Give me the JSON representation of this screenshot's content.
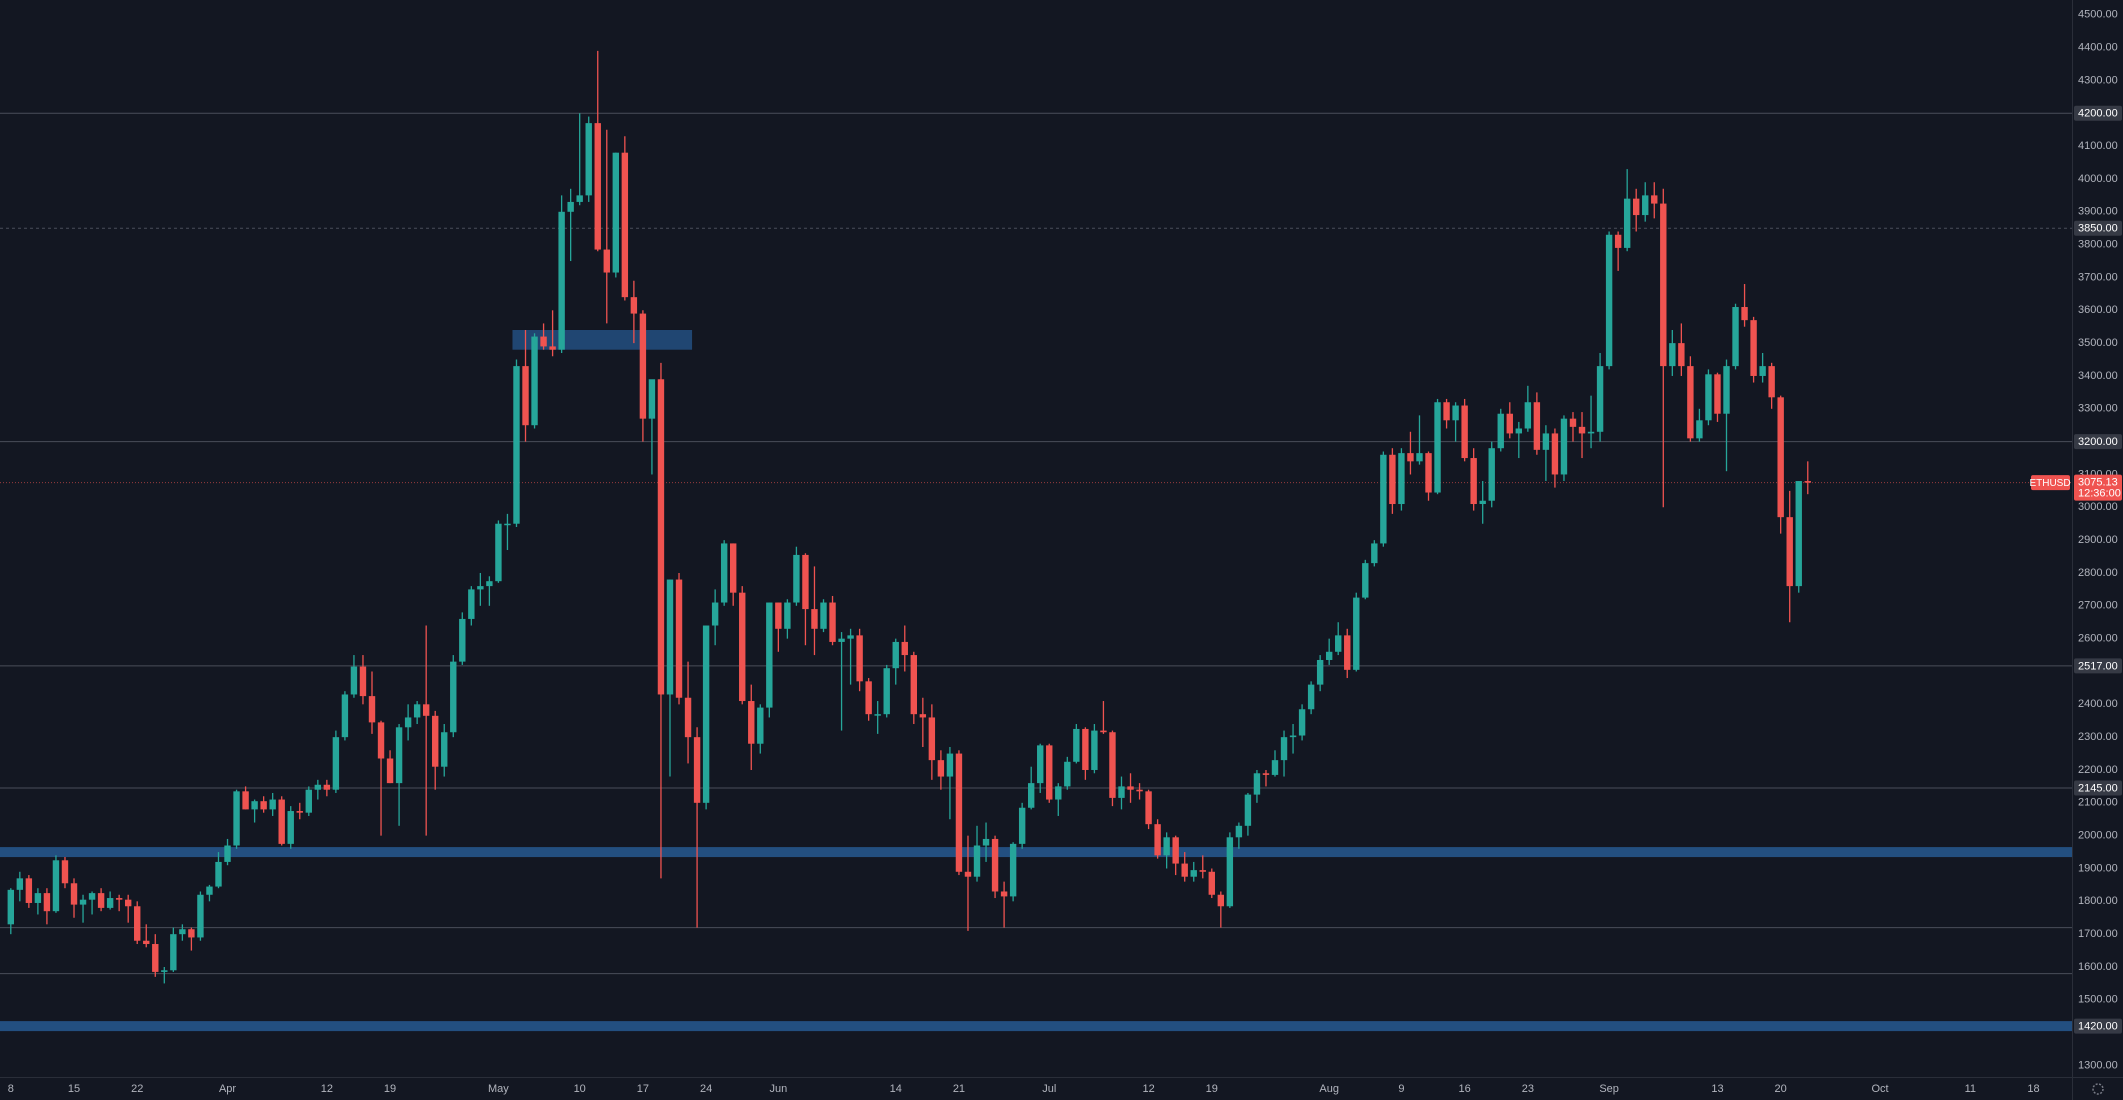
{
  "chart_data": {
    "type": "candlestick",
    "symbol": "ETHUSD",
    "up_color": "#26a69a",
    "down_color": "#ef5350",
    "band_color": "#234f80",
    "level_color": "#4a4e5a",
    "categories": [
      "8",
      null,
      null,
      null,
      null,
      null,
      null,
      "15",
      null,
      null,
      null,
      null,
      null,
      null,
      "22",
      null,
      null,
      null,
      null,
      null,
      null,
      null,
      null,
      null,
      "Apr",
      null,
      null,
      null,
      null,
      null,
      null,
      null,
      null,
      null,
      null,
      "12",
      null,
      null,
      null,
      null,
      null,
      null,
      "19",
      null,
      null,
      null,
      null,
      null,
      null,
      null,
      null,
      null,
      null,
      null,
      "May",
      null,
      null,
      null,
      null,
      null,
      null,
      null,
      null,
      "10",
      null,
      null,
      null,
      null,
      null,
      null,
      "17",
      null,
      null,
      null,
      null,
      null,
      null,
      "24",
      null,
      null,
      null,
      null,
      null,
      null,
      null,
      "Jun",
      null,
      null,
      null,
      null,
      null,
      null,
      null,
      null,
      null,
      null,
      null,
      null,
      "14",
      null,
      null,
      null,
      null,
      null,
      null,
      "21",
      null,
      null,
      null,
      null,
      null,
      null,
      null,
      null,
      null,
      "Jul",
      null,
      null,
      null,
      null,
      null,
      null,
      null,
      null,
      null,
      null,
      "12",
      null,
      null,
      null,
      null,
      null,
      null,
      "19",
      null,
      null,
      null,
      null,
      null,
      null,
      null,
      null,
      null,
      null,
      null,
      null,
      "Aug",
      null,
      null,
      null,
      null,
      null,
      null,
      null,
      "9",
      null,
      null,
      null,
      null,
      null,
      null,
      "16",
      null,
      null,
      null,
      null,
      null,
      null,
      "23",
      null,
      null,
      null,
      null,
      null,
      null,
      null,
      null,
      "Sep",
      null,
      null,
      null,
      null,
      null,
      null,
      null,
      null,
      null,
      null,
      null,
      "13",
      null,
      null,
      null,
      null,
      null,
      null,
      "20",
      null,
      null,
      null,
      null,
      null,
      null,
      null,
      null,
      null,
      null,
      "Oct",
      null,
      null,
      null,
      null,
      null,
      null,
      null,
      null,
      null,
      "11",
      null,
      null,
      null,
      null,
      null,
      null,
      "18",
      null,
      null
    ],
    "open": [
      1730,
      1835,
      1870,
      1795,
      1825,
      1770,
      1925,
      1855,
      1790,
      1805,
      1825,
      1780,
      1810,
      1805,
      1785,
      1680,
      1670,
      1585,
      1590,
      1700,
      1715,
      1690,
      1820,
      1845,
      1920,
      1970,
      2135,
      2080,
      2105,
      2080,
      2110,
      1975,
      2075,
      2070,
      2140,
      2155,
      2140,
      2300,
      2430,
      2515,
      2425,
      2345,
      2235,
      2160,
      2330,
      2360,
      2400,
      2365,
      2210,
      2315,
      2530,
      2660,
      2750,
      2760,
      2775,
      2950,
      2950,
      3430,
      3250,
      3520,
      3490,
      3480,
      3900,
      3930,
      3950,
      4170,
      3785,
      3715,
      4080,
      3640,
      3590,
      3270,
      3390,
      2430,
      2780,
      2420,
      2300,
      2100,
      2640,
      2710,
      2890,
      2740,
      2410,
      2280,
      2390,
      2710,
      2630,
      2710,
      2855,
      2690,
      2630,
      2710,
      2590,
      2600,
      2610,
      2470,
      2370,
      2370,
      2510,
      2590,
      2550,
      2370,
      2360,
      2230,
      2180,
      2250,
      1890,
      1875,
      1970,
      1990,
      1830,
      1815,
      1975,
      2085,
      2160,
      2275,
      2110,
      2150,
      2225,
      2325,
      2200,
      2320,
      2315,
      2115,
      2150,
      2140,
      2135,
      2035,
      1940,
      1995,
      1915,
      1875,
      1895,
      1890,
      1820,
      1785,
      1995,
      2030,
      2125,
      2190,
      2185,
      2230,
      2300,
      2305,
      2385,
      2460,
      2535,
      2560,
      2610,
      2505,
      2725,
      2830,
      2890,
      3160,
      3010,
      3165,
      3140,
      3165,
      3045,
      3320,
      3265,
      3310,
      3150,
      3010,
      3020,
      3180,
      3285,
      3225,
      3240,
      3320,
      3175,
      3225,
      3100,
      3270,
      3245,
      3225,
      3230,
      3430,
      3830,
      3790,
      3940,
      3890,
      3950,
      3925,
      3430,
      3500,
      3430,
      3210,
      3265,
      3405,
      3285,
      3430,
      3610,
      3570,
      3400,
      3430,
      3335,
      2970,
      2760,
      3080,
      null,
      null,
      null,
      null,
      null,
      null,
      null,
      null,
      null,
      null,
      null,
      null,
      null,
      null,
      null,
      null,
      null,
      null,
      null,
      null,
      null,
      null,
      null,
      null,
      null,
      null,
      null
    ],
    "high": [
      1840,
      1890,
      1880,
      1840,
      1840,
      1940,
      1935,
      1870,
      1820,
      1830,
      1840,
      1830,
      1820,
      1820,
      1800,
      1730,
      1700,
      1600,
      1720,
      1730,
      1720,
      1830,
      1850,
      1950,
      1990,
      2140,
      2150,
      2110,
      2120,
      2130,
      2120,
      2090,
      2100,
      2150,
      2170,
      2170,
      2320,
      2440,
      2550,
      2550,
      2500,
      2350,
      2260,
      2340,
      2400,
      2410,
      2640,
      2380,
      2340,
      2550,
      2680,
      2760,
      2800,
      2790,
      2960,
      2980,
      3450,
      3540,
      3530,
      3560,
      3600,
      3950,
      3970,
      4200,
      4190,
      4390,
      4150,
      4080,
      4130,
      3690,
      3600,
      3380,
      3440,
      2780,
      2800,
      2530,
      2330,
      2640,
      2750,
      2900,
      2890,
      2760,
      2460,
      2400,
      2710,
      2710,
      2720,
      2880,
      2860,
      2820,
      2720,
      2730,
      2620,
      2630,
      2630,
      2480,
      2410,
      2520,
      2600,
      2640,
      2560,
      2420,
      2400,
      2260,
      2270,
      2260,
      2000,
      2030,
      2040,
      2000,
      1860,
      1980,
      2100,
      2210,
      2280,
      2280,
      2160,
      2240,
      2340,
      2330,
      2340,
      2410,
      2320,
      2180,
      2190,
      2160,
      2140,
      2050,
      2010,
      2000,
      1950,
      1920,
      1940,
      1900,
      1830,
      2010,
      2040,
      2130,
      2200,
      2200,
      2260,
      2320,
      2340,
      2400,
      2470,
      2550,
      2600,
      2650,
      2630,
      2740,
      2840,
      2900,
      3170,
      3180,
      3180,
      3230,
      3280,
      3170,
      3330,
      3330,
      3320,
      3330,
      3180,
      3080,
      3200,
      3300,
      3320,
      3260,
      3370,
      3350,
      3250,
      3240,
      3280,
      3290,
      3290,
      3340,
      3470,
      3840,
      3840,
      4030,
      3970,
      3990,
      3990,
      3970,
      3540,
      3560,
      3460,
      3300,
      3420,
      3410,
      3450,
      3620,
      3680,
      3580,
      3470,
      3440,
      3340,
      3050,
      3080,
      3140,
      null,
      null,
      null,
      null,
      null,
      null,
      null,
      null,
      null,
      null,
      null,
      null,
      null,
      null,
      null,
      null,
      null,
      null,
      null,
      null,
      null,
      null,
      null,
      null,
      null,
      null,
      null
    ],
    "low": [
      1700,
      1800,
      1780,
      1760,
      1730,
      1765,
      1840,
      1750,
      1735,
      1760,
      1770,
      1775,
      1770,
      1735,
      1670,
      1660,
      1570,
      1550,
      1585,
      1680,
      1650,
      1680,
      1800,
      1840,
      1910,
      1960,
      2080,
      2040,
      2070,
      2060,
      1970,
      1960,
      2050,
      2060,
      2110,
      2120,
      2130,
      2290,
      2420,
      2400,
      2310,
      2000,
      2160,
      2030,
      2290,
      2340,
      2000,
      2140,
      2180,
      2300,
      2520,
      2640,
      2700,
      2700,
      2770,
      2870,
      2940,
      3200,
      3240,
      3480,
      3460,
      3470,
      3750,
      3920,
      3930,
      3780,
      3560,
      3700,
      3630,
      3500,
      3200,
      3100,
      1870,
      2180,
      2400,
      2220,
      1720,
      2080,
      2580,
      2700,
      2700,
      2400,
      2200,
      2250,
      2360,
      2560,
      2600,
      2700,
      2580,
      2550,
      2620,
      2580,
      2320,
      2460,
      2440,
      2350,
      2310,
      2360,
      2460,
      2500,
      2340,
      2270,
      2170,
      2140,
      2050,
      1880,
      1710,
      1860,
      1920,
      1810,
      1720,
      1800,
      1960,
      2080,
      2130,
      2100,
      2060,
      2140,
      2220,
      2170,
      2190,
      2310,
      2090,
      2080,
      2100,
      2110,
      2020,
      1930,
      1900,
      1880,
      1860,
      1860,
      1870,
      1810,
      1720,
      1780,
      1960,
      2000,
      2100,
      2150,
      2180,
      2180,
      2250,
      2290,
      2370,
      2440,
      2520,
      2550,
      2480,
      2500,
      2720,
      2820,
      2880,
      2980,
      2990,
      3100,
      3130,
      3020,
      3040,
      3240,
      3200,
      3140,
      2990,
      2950,
      3000,
      3170,
      3210,
      3150,
      3230,
      3160,
      3080,
      3060,
      3080,
      3200,
      3150,
      3180,
      3200,
      3420,
      3720,
      3780,
      3840,
      3870,
      3880,
      3000,
      3400,
      3400,
      3200,
      3200,
      3250,
      3260,
      3110,
      3420,
      3550,
      3380,
      3380,
      3300,
      2920,
      2650,
      2740,
      3040,
      null,
      null,
      null,
      null,
      null,
      null,
      null,
      null,
      null,
      null,
      null,
      null,
      null,
      null,
      null,
      null,
      null,
      null,
      null,
      null,
      null,
      null,
      null,
      null,
      null,
      null,
      null
    ],
    "close": [
      1835,
      1870,
      1795,
      1825,
      1770,
      1925,
      1855,
      1790,
      1805,
      1825,
      1780,
      1810,
      1805,
      1785,
      1680,
      1670,
      1585,
      1590,
      1700,
      1715,
      1690,
      1820,
      1845,
      1920,
      1970,
      2135,
      2080,
      2105,
      2080,
      2110,
      1975,
      2075,
      2070,
      2140,
      2155,
      2140,
      2300,
      2430,
      2515,
      2425,
      2345,
      2235,
      2160,
      2330,
      2360,
      2400,
      2365,
      2210,
      2315,
      2530,
      2660,
      2750,
      2760,
      2775,
      2950,
      2950,
      3430,
      3250,
      3520,
      3490,
      3480,
      3900,
      3930,
      3950,
      4170,
      3785,
      3715,
      4080,
      3640,
      3590,
      3270,
      3390,
      2430,
      2780,
      2420,
      2300,
      2100,
      2640,
      2710,
      2890,
      2740,
      2410,
      2280,
      2390,
      2710,
      2630,
      2710,
      2855,
      2690,
      2630,
      2710,
      2590,
      2600,
      2610,
      2470,
      2370,
      2370,
      2510,
      2590,
      2550,
      2370,
      2360,
      2230,
      2180,
      2250,
      1890,
      1875,
      1970,
      1990,
      1830,
      1815,
      1975,
      2085,
      2160,
      2275,
      2110,
      2150,
      2225,
      2325,
      2200,
      2320,
      2315,
      2115,
      2150,
      2140,
      2135,
      2035,
      1940,
      1995,
      1915,
      1875,
      1895,
      1890,
      1820,
      1785,
      1995,
      2030,
      2125,
      2190,
      2185,
      2230,
      2300,
      2305,
      2385,
      2460,
      2535,
      2560,
      2610,
      2505,
      2725,
      2830,
      2890,
      3160,
      3010,
      3165,
      3140,
      3165,
      3045,
      3320,
      3265,
      3310,
      3150,
      3010,
      3020,
      3180,
      3285,
      3225,
      3240,
      3320,
      3175,
      3225,
      3100,
      3270,
      3245,
      3225,
      3230,
      3430,
      3830,
      3790,
      3940,
      3890,
      3950,
      3925,
      3430,
      3500,
      3430,
      3210,
      3265,
      3405,
      3285,
      3430,
      3610,
      3570,
      3400,
      3430,
      3335,
      2970,
      2760,
      3080,
      3075.13,
      null,
      null,
      null,
      null,
      null,
      null,
      null,
      null,
      null,
      null,
      null,
      null,
      null,
      null,
      null,
      null,
      null,
      null,
      null,
      null,
      null,
      null,
      null,
      null,
      null,
      null,
      null
    ],
    "ylim": [
      1265,
      4545
    ],
    "yticks": [
      {
        "value": 1300,
        "label": "1300.00"
      },
      {
        "value": 1500,
        "label": "1500.00"
      },
      {
        "value": 1600,
        "label": "1600.00"
      },
      {
        "value": 1700,
        "label": "1700.00"
      },
      {
        "value": 1800,
        "label": "1800.00"
      },
      {
        "value": 1900,
        "label": "1900.00"
      },
      {
        "value": 2000,
        "label": "2000.00"
      },
      {
        "value": 2100,
        "label": "2100.00"
      },
      {
        "value": 2200,
        "label": "2200.00"
      },
      {
        "value": 2300,
        "label": "2300.00"
      },
      {
        "value": 2400,
        "label": "2400.00"
      },
      {
        "value": 2600,
        "label": "2600.00"
      },
      {
        "value": 2700,
        "label": "2700.00"
      },
      {
        "value": 2800,
        "label": "2800.00"
      },
      {
        "value": 2900,
        "label": "2900.00"
      },
      {
        "value": 3000,
        "label": "3000.00"
      },
      {
        "value": 3100,
        "label": "3100.00"
      },
      {
        "value": 3300,
        "label": "3300.00"
      },
      {
        "value": 3400,
        "label": "3400.00"
      },
      {
        "value": 3500,
        "label": "3500.00"
      },
      {
        "value": 3600,
        "label": "3600.00"
      },
      {
        "value": 3700,
        "label": "3700.00"
      },
      {
        "value": 3800,
        "label": "3800.00"
      },
      {
        "value": 3900,
        "label": "3900.00"
      },
      {
        "value": 4000,
        "label": "4000.00"
      },
      {
        "value": 4100,
        "label": "4100.00"
      },
      {
        "value": 4300,
        "label": "4300.00"
      },
      {
        "value": 4400,
        "label": "4400.00"
      },
      {
        "value": 4500,
        "label": "4500.00"
      }
    ],
    "levels": [
      {
        "value": 4200,
        "label": "4200.00"
      },
      {
        "value": 3850,
        "label": "3850.00",
        "dashed": true
      },
      {
        "value": 3200,
        "label": "3200.00"
      },
      {
        "value": 2517,
        "label": "2517.00"
      },
      {
        "value": 2145,
        "label": "2145.00"
      }
    ],
    "lines": [
      1720,
      1580
    ],
    "bands": [
      {
        "value": 1950
      },
      {
        "value": 1420,
        "label": "1420.00"
      }
    ],
    "zone": [
      3480,
      3540
    ],
    "last": {
      "value": 3075.13,
      "countdown": "12:36:00"
    }
  }
}
